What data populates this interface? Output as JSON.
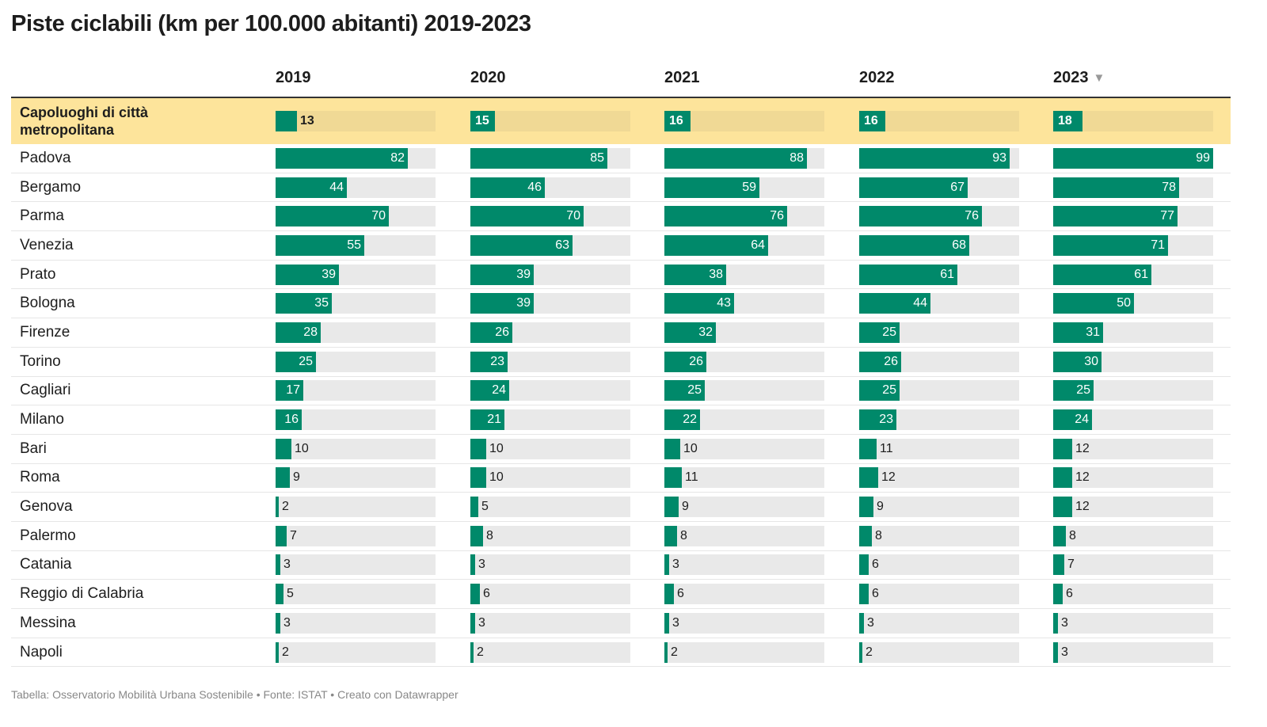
{
  "title": "Piste ciclabili (km per 100.000 abitanti) 2019-2023",
  "footer": "Tabella: Osservatorio Mobilità Urbana Sostenibile • Fonte: ISTAT • Creato con Datawrapper",
  "sort_icon": "sort-descending-triangle-icon",
  "colors": {
    "bar": "#00896a",
    "track": "#e9e9e9",
    "highlight_row": "#fde49b",
    "highlight_track": "#f0d995"
  },
  "chart_data": {
    "type": "table",
    "title": "Piste ciclabili (km per 100.000 abitanti) 2019-2023",
    "columns": [
      "2019",
      "2020",
      "2021",
      "2022",
      "2023"
    ],
    "scale_max": 99,
    "sorted_by": "2023",
    "rows": [
      {
        "name": "Capoluoghi di città metropolitana",
        "values": [
          13,
          15,
          16,
          16,
          18
        ],
        "highlight": true
      },
      {
        "name": "Padova",
        "values": [
          82,
          85,
          88,
          93,
          99
        ]
      },
      {
        "name": "Bergamo",
        "values": [
          44,
          46,
          59,
          67,
          78
        ]
      },
      {
        "name": "Parma",
        "values": [
          70,
          70,
          76,
          76,
          77
        ]
      },
      {
        "name": "Venezia",
        "values": [
          55,
          63,
          64,
          68,
          71
        ]
      },
      {
        "name": "Prato",
        "values": [
          39,
          39,
          38,
          61,
          61
        ]
      },
      {
        "name": "Bologna",
        "values": [
          35,
          39,
          43,
          44,
          50
        ]
      },
      {
        "name": "Firenze",
        "values": [
          28,
          26,
          32,
          25,
          31
        ]
      },
      {
        "name": "Torino",
        "values": [
          25,
          23,
          26,
          26,
          30
        ]
      },
      {
        "name": "Cagliari",
        "values": [
          17,
          24,
          25,
          25,
          25
        ]
      },
      {
        "name": "Milano",
        "values": [
          16,
          21,
          22,
          23,
          24
        ]
      },
      {
        "name": "Bari",
        "values": [
          10,
          10,
          10,
          11,
          12
        ]
      },
      {
        "name": "Roma",
        "values": [
          9,
          10,
          11,
          12,
          12
        ]
      },
      {
        "name": "Genova",
        "values": [
          2,
          5,
          9,
          9,
          12
        ]
      },
      {
        "name": "Palermo",
        "values": [
          7,
          8,
          8,
          8,
          8
        ]
      },
      {
        "name": "Catania",
        "values": [
          3,
          3,
          3,
          6,
          7
        ]
      },
      {
        "name": "Reggio di Calabria",
        "values": [
          5,
          6,
          6,
          6,
          6
        ]
      },
      {
        "name": "Messina",
        "values": [
          3,
          3,
          3,
          3,
          3
        ]
      },
      {
        "name": "Napoli",
        "values": [
          2,
          2,
          2,
          2,
          3
        ]
      }
    ]
  }
}
